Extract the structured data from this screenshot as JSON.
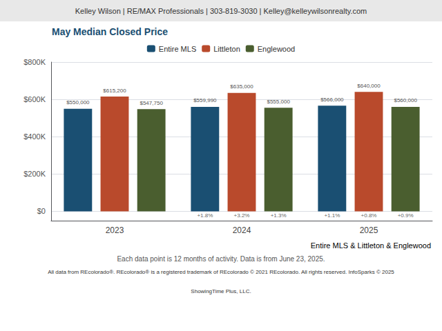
{
  "chart_data": {
    "type": "bar",
    "title": "May Median Closed Price",
    "header": "Kelley Wilson | RE/MAX Professionals | 303-819-3030 | Kelley@kelleywilsonrealty.com",
    "categories": [
      "2023",
      "2024",
      "2025"
    ],
    "series": [
      {
        "name": "Entire MLS",
        "color": "#1a4f72",
        "values": [
          550000,
          559990,
          566000
        ],
        "value_labels": [
          "$550,000",
          "$559,990",
          "$566,000"
        ],
        "annotations": [
          null,
          "+1.8%",
          "+1.1%"
        ]
      },
      {
        "name": "Littleton",
        "color": "#b94a2c",
        "values": [
          615200,
          635000,
          640000
        ],
        "value_labels": [
          "$615,200",
          "$635,000",
          "$640,000"
        ],
        "annotations": [
          null,
          "+3.2%",
          "+0.8%"
        ]
      },
      {
        "name": "Englewood",
        "color": "#4a5e2f",
        "values": [
          547750,
          555000,
          560000
        ],
        "value_labels": [
          "$547,750",
          "$555,000",
          "$560,000"
        ],
        "annotations": [
          null,
          "+1.3%",
          "+0.9%"
        ]
      }
    ],
    "ylim": [
      -50000,
      800000
    ],
    "yticks": [
      {
        "value": 0,
        "label": "$0"
      },
      {
        "value": 200000,
        "label": "$200K"
      },
      {
        "value": 400000,
        "label": "$400K"
      },
      {
        "value": 600000,
        "label": "$600K"
      },
      {
        "value": 800000,
        "label": "$800K"
      }
    ],
    "grid": true,
    "legend": "top",
    "data_labels": true,
    "footer_segments": [
      {
        "text": "Entire MLS",
        "color": "#1a4f72"
      },
      {
        "text": " & ",
        "color": "#555555"
      },
      {
        "text": "Littleton",
        "color": "#b94a2c"
      },
      {
        "text": " & ",
        "color": "#555555"
      },
      {
        "text": "Englewood",
        "color": "#4a5e2f"
      }
    ],
    "footer": [
      "Each data point is 12 months of activity. Data is from June 23, 2025.",
      "All data from REcolorado®. REcolorado® is a registered trademark of REcolorado © 2021 REcolorado. All rights reserved. InfoSparks © 2025",
      "ShowingTime Plus, LLC."
    ]
  }
}
